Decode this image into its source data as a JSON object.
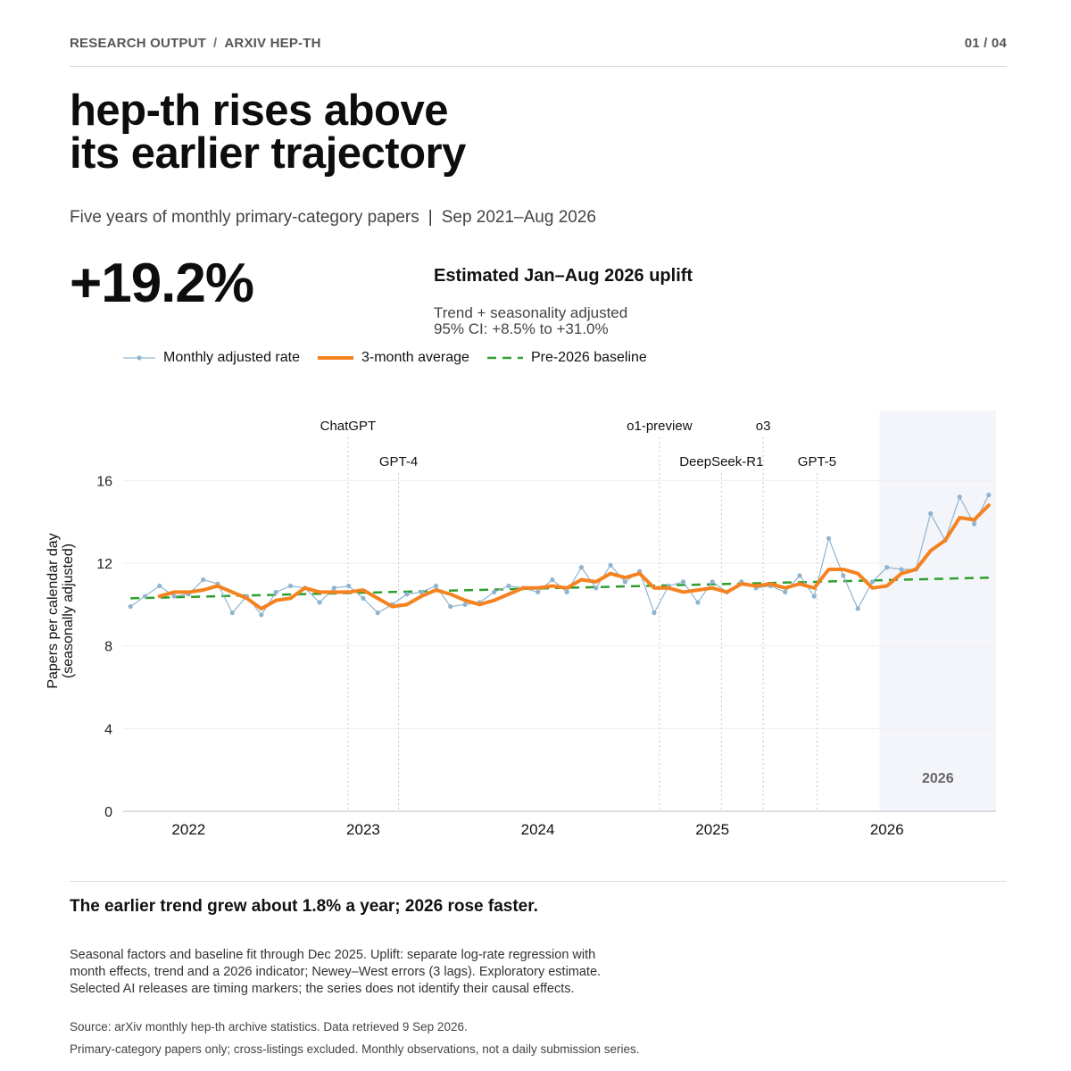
{
  "header": {
    "breadcrumb": [
      "RESEARCH OUTPUT",
      "ARXIV HEP-TH"
    ],
    "breadcrumb_sep": "/",
    "page_indicator": "01 / 04"
  },
  "title_lines": [
    "hep-th rises above",
    "its earlier trajectory"
  ],
  "subtitle": {
    "description": "Five years of monthly primary-category papers",
    "separator": "|",
    "period": "Sep 2021–Aug 2026"
  },
  "headline": {
    "value": "+19.2%",
    "label": "Estimated Jan–Aug 2026 uplift",
    "note_lines": [
      "Trend + seasonality adjusted",
      "95% CI: +8.5% to +31.0%"
    ]
  },
  "legend": [
    {
      "label": "Monthly adjusted rate",
      "color": "#8fb4cf",
      "style": "line-marker"
    },
    {
      "label": "3-month average",
      "color": "#f58220",
      "style": "thick-line"
    },
    {
      "label": "Pre-2026 baseline",
      "color": "#2ca02c",
      "style": "dashed"
    }
  ],
  "chart_data": {
    "type": "line",
    "ylabel_lines": [
      "Papers per calendar day",
      "(seasonally adjusted)"
    ],
    "ylim": [
      0,
      18
    ],
    "yticks": [
      0,
      4,
      8,
      12,
      16
    ],
    "xlim": [
      "2021-09",
      "2026-09"
    ],
    "xticks": [
      {
        "label": "2022",
        "date": "2022-01"
      },
      {
        "label": "2023",
        "date": "2023-01"
      },
      {
        "label": "2024",
        "date": "2024-01"
      },
      {
        "label": "2025",
        "date": "2025-01"
      },
      {
        "label": "2026",
        "date": "2026-01"
      }
    ],
    "grid": true,
    "shaded_region": {
      "label": "2026",
      "start": "2026-01",
      "end": "2026-08"
    },
    "events": [
      {
        "label": "ChatGPT",
        "date": "2022-11-30",
        "row": 1
      },
      {
        "label": "GPT-4",
        "date": "2023-03-14",
        "row": 2
      },
      {
        "label": "o1-preview",
        "date": "2024-09-12",
        "row": 1
      },
      {
        "label": "DeepSeek-R1",
        "date": "2025-01-20",
        "row": 2
      },
      {
        "label": "o3",
        "date": "2025-04-16",
        "row": 1
      },
      {
        "label": "GPT-5",
        "date": "2025-08-07",
        "row": 2
      }
    ],
    "months": [
      "2021-09",
      "2021-10",
      "2021-11",
      "2021-12",
      "2022-01",
      "2022-02",
      "2022-03",
      "2022-04",
      "2022-05",
      "2022-06",
      "2022-07",
      "2022-08",
      "2022-09",
      "2022-10",
      "2022-11",
      "2022-12",
      "2023-01",
      "2023-02",
      "2023-03",
      "2023-04",
      "2023-05",
      "2023-06",
      "2023-07",
      "2023-08",
      "2023-09",
      "2023-10",
      "2023-11",
      "2023-12",
      "2024-01",
      "2024-02",
      "2024-03",
      "2024-04",
      "2024-05",
      "2024-06",
      "2024-07",
      "2024-08",
      "2024-09",
      "2024-10",
      "2024-11",
      "2024-12",
      "2025-01",
      "2025-02",
      "2025-03",
      "2025-04",
      "2025-05",
      "2025-06",
      "2025-07",
      "2025-08",
      "2025-09",
      "2025-10",
      "2025-11",
      "2025-12",
      "2026-01",
      "2026-02",
      "2026-03",
      "2026-04",
      "2026-05",
      "2026-06",
      "2026-07",
      "2026-08"
    ],
    "series": [
      {
        "name": "Monthly adjusted rate",
        "color": "#8fb4cf",
        "values": [
          9.9,
          10.4,
          10.9,
          10.4,
          10.5,
          11.2,
          11.0,
          9.6,
          10.4,
          9.5,
          10.6,
          10.9,
          10.8,
          10.1,
          10.8,
          10.9,
          10.3,
          9.6,
          10.0,
          10.5,
          10.6,
          10.9,
          9.9,
          10.0,
          10.1,
          10.6,
          10.9,
          10.8,
          10.6,
          11.2,
          10.6,
          11.8,
          10.8,
          11.9,
          11.1,
          11.6,
          9.6,
          10.9,
          11.1,
          10.1,
          11.1,
          10.6,
          11.1,
          10.8,
          10.9,
          10.6,
          11.4,
          10.4,
          13.2,
          11.4,
          9.8,
          11.1,
          11.8,
          11.7,
          11.7,
          14.4,
          13.1,
          15.2,
          13.9,
          15.3
        ]
      },
      {
        "name": "3-month average",
        "color": "#f58220",
        "values": [
          null,
          null,
          10.4,
          10.6,
          10.6,
          10.7,
          10.9,
          10.6,
          10.3,
          9.8,
          10.2,
          10.3,
          10.8,
          10.6,
          10.6,
          10.6,
          10.7,
          10.3,
          9.9,
          10.0,
          10.4,
          10.7,
          10.5,
          10.2,
          10.0,
          10.2,
          10.5,
          10.8,
          10.8,
          10.9,
          10.8,
          11.2,
          11.1,
          11.5,
          11.3,
          11.5,
          10.8,
          10.8,
          10.6,
          10.7,
          10.8,
          10.6,
          11.0,
          10.9,
          11.0,
          10.8,
          11.0,
          10.8,
          11.7,
          11.7,
          11.5,
          10.8,
          10.9,
          11.5,
          11.7,
          12.6,
          13.1,
          14.2,
          14.1,
          14.8
        ]
      },
      {
        "name": "Pre-2026 baseline",
        "color": "#2ca02c",
        "start": {
          "date": "2021-09",
          "value": 10.3
        },
        "end": {
          "date": "2026-08",
          "value": 11.3
        }
      }
    ]
  },
  "takeaway": "The earlier trend grew about 1.8% a year; 2026 rose faster.",
  "methods_lines": [
    "Seasonal factors and baseline fit through Dec 2025. Uplift: separate log-rate regression with",
    "month effects, trend and a 2026 indicator; Newey–West errors (3 lags). Exploratory estimate.",
    "Selected AI releases are timing markers; the series does not identify their causal effects."
  ],
  "source": "Source: arXiv monthly hep-th archive statistics. Data retrieved 9 Sep 2026.",
  "footnote": "Primary-category papers only; cross-listings excluded. Monthly observations, not a daily submission series."
}
